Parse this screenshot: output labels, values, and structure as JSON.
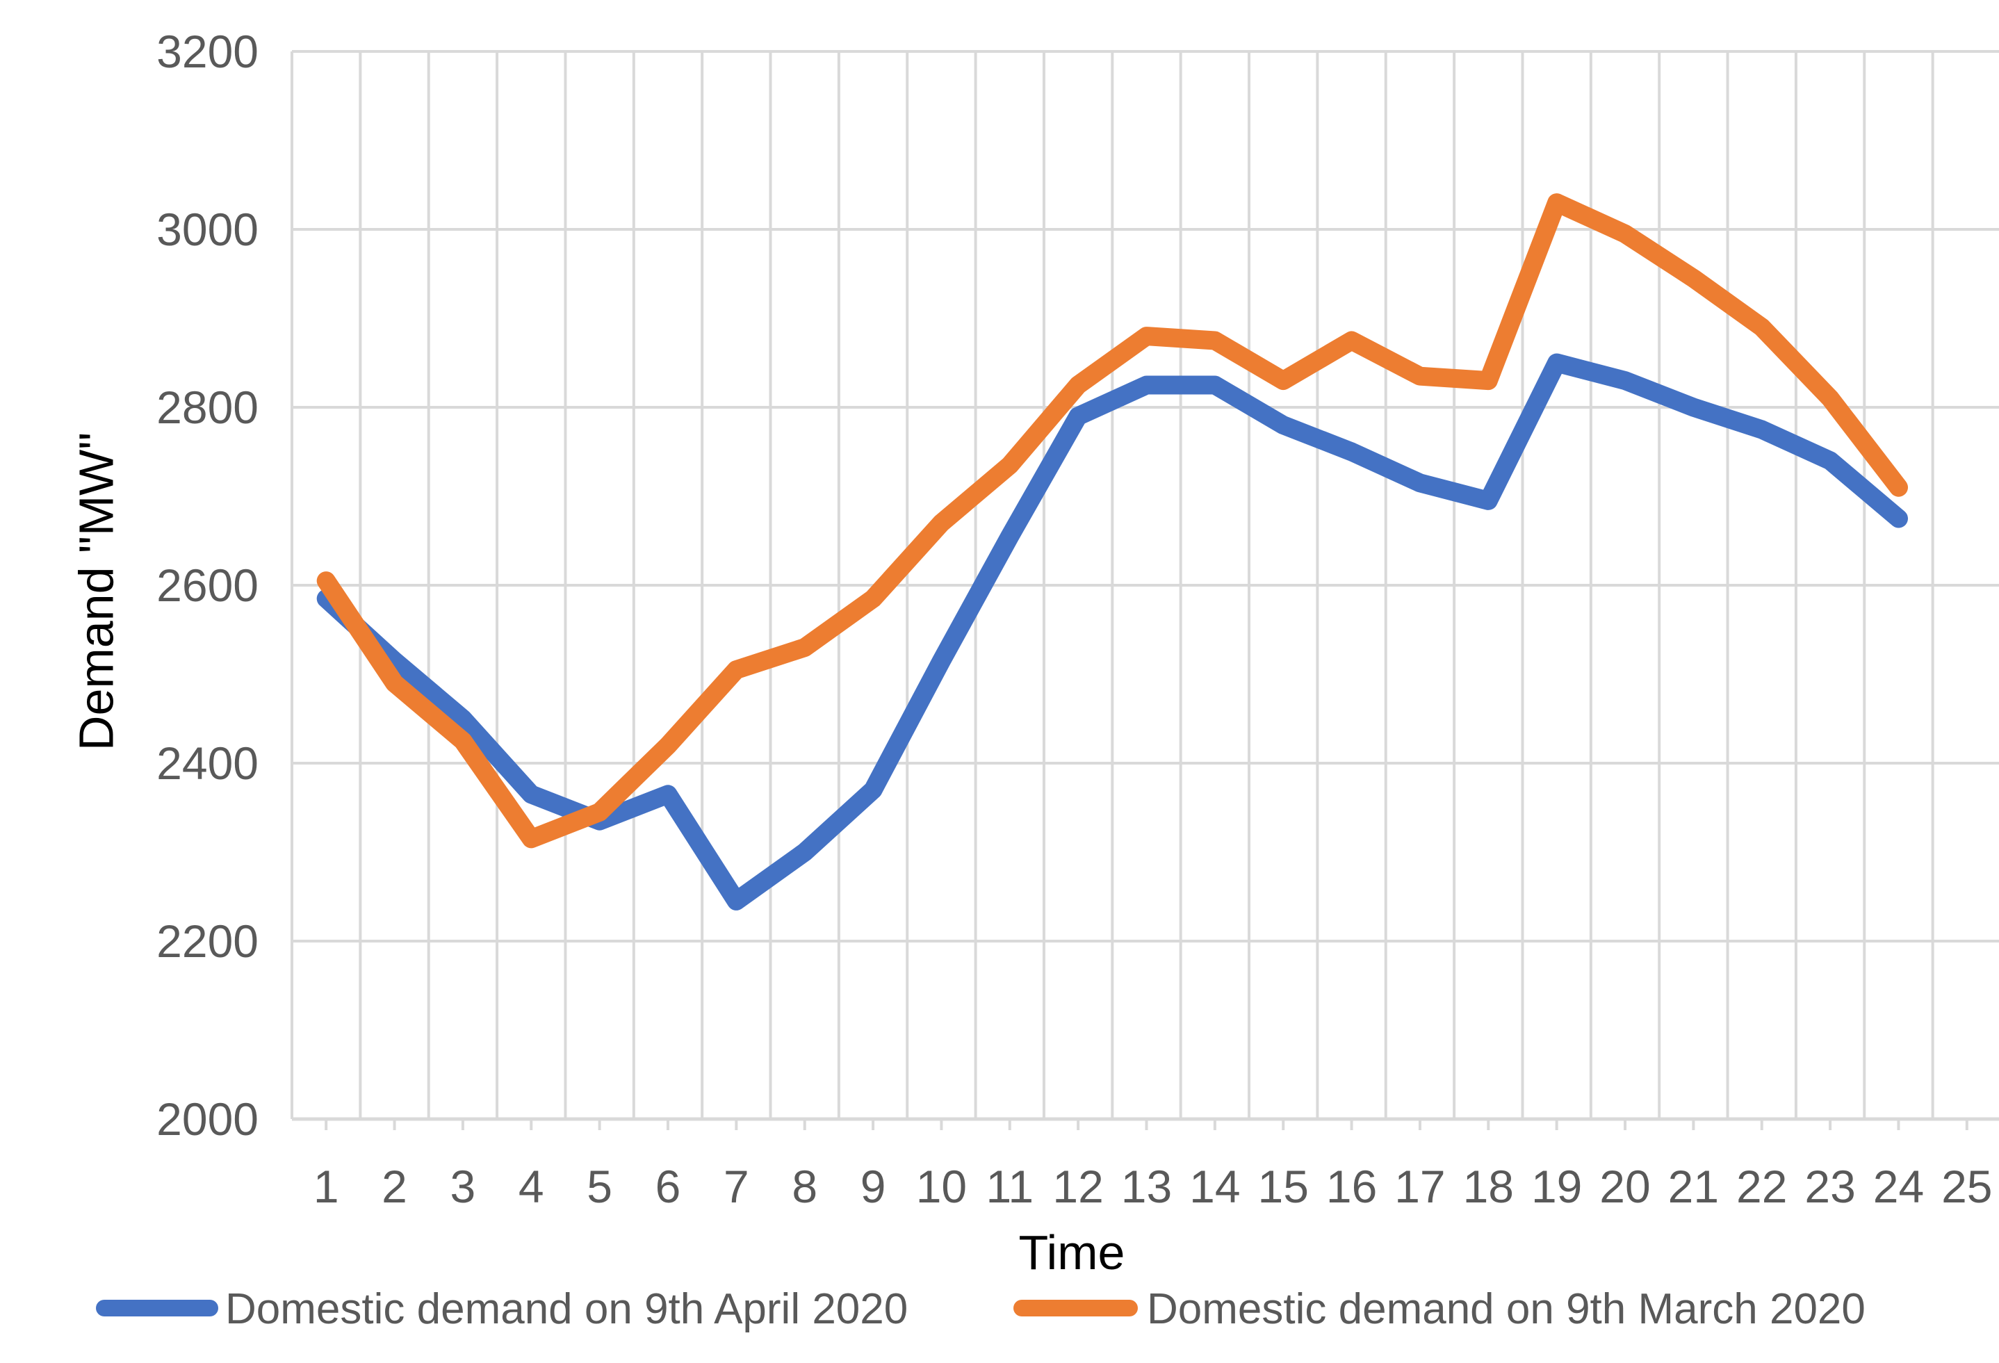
{
  "chart_data": {
    "type": "line",
    "title": "",
    "xlabel": "Time",
    "ylabel": "Demand \"MW\"",
    "x_tick_labels": [
      "1",
      "2",
      "3",
      "4",
      "5",
      "6",
      "7",
      "8",
      "9",
      "10",
      "11",
      "12",
      "13",
      "14",
      "15",
      "16",
      "17",
      "18",
      "19",
      "20",
      "21",
      "22",
      "23",
      "24",
      "25"
    ],
    "categories": [
      1,
      2,
      3,
      4,
      5,
      6,
      7,
      8,
      9,
      10,
      11,
      12,
      13,
      14,
      15,
      16,
      17,
      18,
      19,
      20,
      21,
      22,
      23,
      24
    ],
    "series": [
      {
        "name": "Domestic demand on 9th April 2020",
        "color": "#4472C4",
        "values": [
          2585,
          2515,
          2450,
          2365,
          2335,
          2365,
          2245,
          2300,
          2370,
          2515,
          2655,
          2790,
          2825,
          2825,
          2780,
          2750,
          2715,
          2695,
          2850,
          2830,
          2800,
          2775,
          2740,
          2675
        ]
      },
      {
        "name": "Domestic demand on 9th March 2020",
        "color": "#ED7D31",
        "values": [
          2605,
          2490,
          2425,
          2315,
          2345,
          2420,
          2505,
          2530,
          2585,
          2670,
          2735,
          2825,
          2880,
          2875,
          2830,
          2875,
          2835,
          2830,
          3030,
          2995,
          2945,
          2890,
          2810,
          2710
        ]
      }
    ],
    "y_axis": {
      "min": 2000,
      "max": 3200,
      "step": 200,
      "tick_values": [
        2000,
        2200,
        2400,
        2600,
        2800,
        3000,
        3200
      ]
    },
    "x_axis_slots": 25,
    "grid": true,
    "legend_position": "bottom"
  },
  "styles": {
    "gridline_color": "#D9D9D9",
    "axis_line_color": "#D9D9D9",
    "tick_label_color": "#595959",
    "axis_title_color": "#000000",
    "legend_text_color": "#595959",
    "series_stroke_width": 27,
    "legend_swatch_width": 24
  }
}
